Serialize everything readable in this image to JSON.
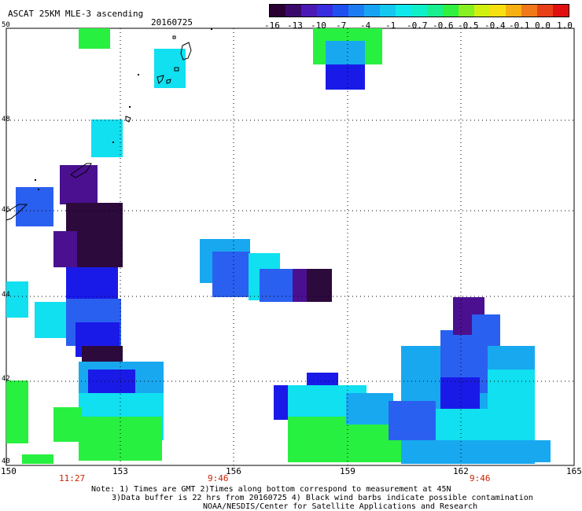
{
  "header": {
    "title": "ASCAT 25KM MLE-3 ascending",
    "date": "20160725"
  },
  "colorbar": {
    "labels": [
      "-16",
      "-13",
      "-10",
      "-7",
      "-4",
      "-1",
      "-0.7",
      "-0.6",
      "-0.5",
      "-0.4",
      "-0.1",
      "0.0",
      "1.0"
    ],
    "colors": [
      "#2a0033",
      "#3a0a6b",
      "#4b1ab4",
      "#3a2ce0",
      "#2050f0",
      "#1e7cf2",
      "#18a4f2",
      "#14c8f0",
      "#10e8ec",
      "#10f0c8",
      "#18f090",
      "#30f040",
      "#88f020",
      "#d0f010",
      "#f8e010",
      "#f8b010",
      "#f07818",
      "#e84018",
      "#e01010"
    ]
  },
  "axes": {
    "x_ticks": [
      "150",
      "153",
      "156",
      "159",
      "162",
      "165"
    ],
    "y_ticks": [
      "50",
      "48",
      "46",
      "44",
      "42",
      "40"
    ],
    "times": [
      "11:27",
      "9:46",
      "9:46"
    ]
  },
  "notes": {
    "line1": "Note: 1) Times are GMT 2)Times along bottom correspond to measurement at 45N",
    "line2": "3)Data buffer is 22 hrs from 20160725 4) Black wind barbs indicate possible contamination",
    "line3": "NOAA/NESDIS/Center for Satellite Applications and Research"
  },
  "grid": true,
  "colors": {
    "deep_purple": "#2c0a3c",
    "purple": "#4a1090",
    "blue": "#1a1ae8",
    "mid_blue": "#2a60f0",
    "light_blue": "#18a8f0",
    "cyan": "#10e0f0",
    "green": "#28f040"
  }
}
